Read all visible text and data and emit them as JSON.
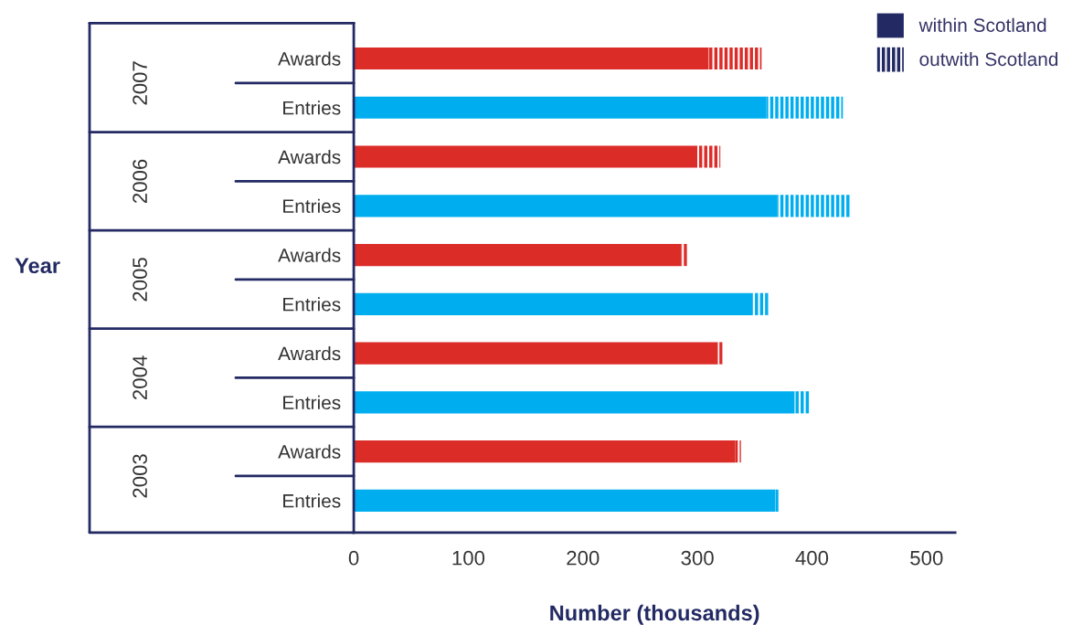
{
  "chart_data": {
    "type": "bar",
    "orientation": "horizontal",
    "stacked": true,
    "categories": [
      "Awards",
      "Entries",
      "Awards",
      "Entries",
      "Awards",
      "Entries",
      "Awards",
      "Entries",
      "Awards",
      "Entries"
    ],
    "series": [
      {
        "name": "within Scotland",
        "color": "#232a63",
        "colors": [
          "#dc2c28",
          "#00aeef",
          "#dc2c28",
          "#00aeef",
          "#dc2c28",
          "#00aeef",
          "#dc2c28",
          "#00aeef",
          "#dc2c28",
          "#00aeef"
        ],
        "values": [
          310,
          360,
          300,
          370,
          286,
          348,
          318,
          385,
          333,
          368
        ]
      },
      {
        "name": "outwith Scotland",
        "color": "#232a63",
        "colors": [
          "#dc2c28",
          "#00aeef",
          "#dc2c28",
          "#00aeef",
          "#dc2c28",
          "#00aeef",
          "#dc2c28",
          "#00aeef",
          "#dc2c28",
          "#00aeef"
        ],
        "values": [
          46,
          67,
          20,
          64,
          5,
          14,
          4,
          13,
          5,
          3
        ]
      }
    ],
    "annotations": [
      "2007",
      "2006",
      "2005",
      "2004",
      "2003",
      "Year"
    ],
    "xlabel": "Number (thousands)",
    "xlim": [
      0,
      525
    ],
    "xticks": [
      0,
      100,
      200,
      300,
      400,
      500
    ],
    "legend": "top right",
    "grid": false
  }
}
